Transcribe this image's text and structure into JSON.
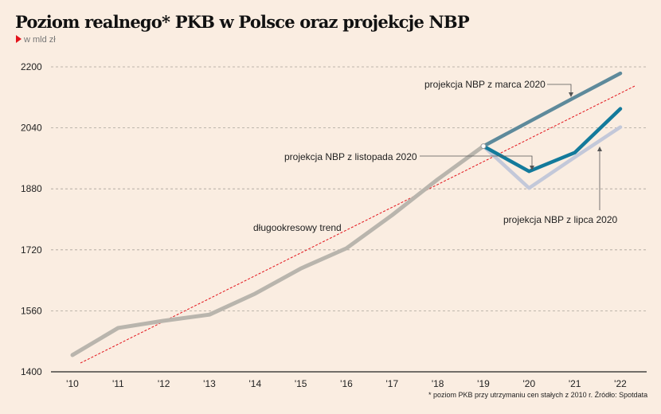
{
  "chart_data": {
    "type": "line",
    "title": "Poziom realnego* PKB w Polsce oraz projekcje NBP",
    "subtitle": "w mld zł",
    "footnote": "* poziom PKB przy utrzymaniu cen stałych z 2010 r. Źródło: Spotdata",
    "x": [
      "'10",
      "'11",
      "'12",
      "'13",
      "'14",
      "'15",
      "'16",
      "'17",
      "'18",
      "'19",
      "'20",
      "'21",
      "'22"
    ],
    "yticks": [
      1400,
      1560,
      1720,
      1880,
      2040,
      2200
    ],
    "ylim": [
      1400,
      2200
    ],
    "grid": true,
    "series": [
      {
        "key": "actual",
        "color": "#b9b5ad",
        "x": [
          "'10",
          "'11",
          "'12",
          "'13",
          "'14",
          "'15",
          "'16",
          "'17",
          "'18",
          "'19"
        ],
        "values": [
          1444,
          1515,
          1534,
          1550,
          1605,
          1671,
          1724,
          1811,
          1905,
          1992
        ]
      },
      {
        "key": "march",
        "name": "projekcja NBP z marca 2020",
        "color": "#5e8a9b",
        "x": [
          "'19",
          "'20",
          "'21",
          "'22"
        ],
        "values": [
          1992,
          2056,
          2120,
          2183
        ]
      },
      {
        "key": "july",
        "name": "projekcja NBP z lipca 2020",
        "color": "#c3c8d9",
        "x": [
          "'19",
          "'20",
          "'21",
          "'22"
        ],
        "values": [
          1992,
          1882,
          1963,
          2042
        ]
      },
      {
        "key": "november",
        "name": "projekcja NBP z listopada 2020",
        "color": "#137a9b",
        "x": [
          "'19",
          "'20",
          "'21",
          "'22"
        ],
        "values": [
          1992,
          1926,
          1975,
          2090
        ]
      }
    ],
    "trend": {
      "name": "długookresowy trend",
      "color": "#e3131b",
      "x": [
        "'10",
        "'22"
      ],
      "values": [
        1423,
        2133
      ]
    }
  }
}
